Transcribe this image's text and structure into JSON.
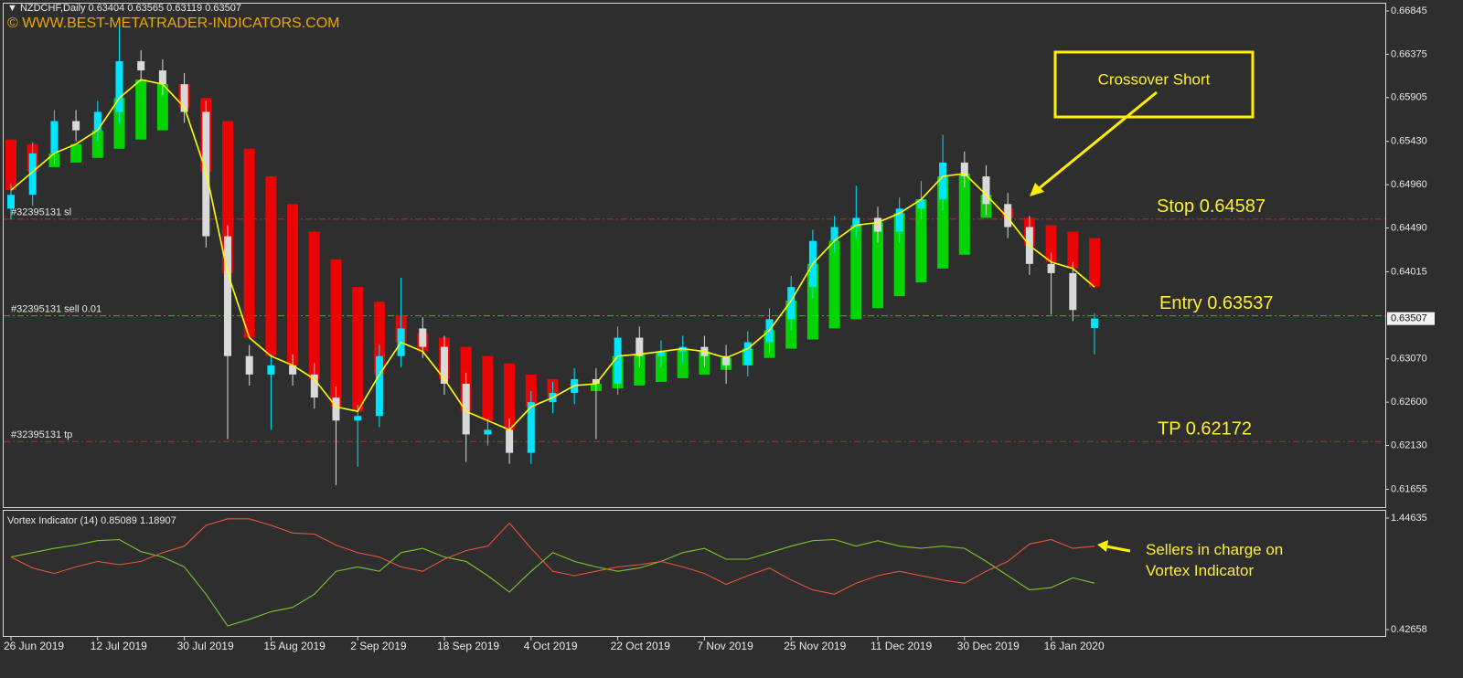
{
  "chart_data": [
    {
      "type": "candlestick",
      "symbol": "NZDCHF,Daily",
      "watermark": "© WWW.BEST-METATRADER-INDICATORS.COM",
      "annotation": "Crossover Short",
      "categories": [
        "26 Jun 2019",
        null,
        null,
        null,
        "12 Jul 2019",
        null,
        null,
        null,
        "30 Jul 2019",
        null,
        null,
        null,
        "15 Aug 2019",
        null,
        null,
        null,
        "2 Sep 2019",
        null,
        null,
        null,
        "18 Sep 2019",
        null,
        null,
        null,
        "4 Oct 2019",
        null,
        null,
        null,
        "22 Oct 2019",
        null,
        null,
        null,
        "7 Nov 2019",
        null,
        null,
        null,
        "25 Nov 2019",
        null,
        null,
        null,
        "11 Dec 2019",
        null,
        null,
        null,
        "30 Dec 2019",
        null,
        null,
        null,
        "16 Jan 2020",
        null,
        null
      ],
      "open": [
        0.647,
        0.6485,
        0.653,
        0.6565,
        0.6555,
        0.6575,
        0.663,
        0.662,
        0.6605,
        0.6575,
        0.644,
        0.631,
        0.629,
        0.63,
        0.629,
        0.6265,
        0.624,
        0.6245,
        0.631,
        0.634,
        0.632,
        0.628,
        0.6225,
        0.623,
        0.6205,
        0.626,
        0.627,
        0.6285,
        0.628,
        0.633,
        0.631,
        0.6315,
        0.632,
        0.631,
        0.63,
        0.6325,
        0.635,
        0.6385,
        0.6435,
        0.645,
        0.646,
        0.6445,
        0.647,
        0.648,
        0.652,
        0.6505,
        0.6475,
        0.645,
        0.641,
        0.64,
        0.63404
      ],
      "high": [
        0.6497,
        0.6542,
        0.6577,
        0.6577,
        0.6587,
        0.6668,
        0.6642,
        0.6632,
        0.6617,
        0.6587,
        0.6452,
        0.6322,
        0.6312,
        0.6312,
        0.6302,
        0.6277,
        0.6257,
        0.6322,
        0.6395,
        0.6352,
        0.6332,
        0.6292,
        0.6242,
        0.6242,
        0.6272,
        0.6282,
        0.6297,
        0.6297,
        0.6342,
        0.6342,
        0.6327,
        0.6332,
        0.6332,
        0.6322,
        0.6337,
        0.6362,
        0.6397,
        0.6447,
        0.6462,
        0.6495,
        0.6472,
        0.6482,
        0.65,
        0.655,
        0.6532,
        0.6517,
        0.6487,
        0.6462,
        0.6422,
        0.6412,
        0.63565
      ],
      "low": [
        0.6458,
        0.6473,
        0.6518,
        0.6543,
        0.6543,
        0.6563,
        0.6608,
        0.6593,
        0.6563,
        0.6428,
        0.622,
        0.6278,
        0.623,
        0.6278,
        0.6253,
        0.617,
        0.619,
        0.6233,
        0.6298,
        0.6308,
        0.6268,
        0.6195,
        0.6213,
        0.6193,
        0.6193,
        0.6248,
        0.6258,
        0.622,
        0.6268,
        0.6298,
        0.6298,
        0.6303,
        0.6298,
        0.628,
        0.6288,
        0.6313,
        0.6338,
        0.6373,
        0.6423,
        0.6438,
        0.6433,
        0.6433,
        0.6458,
        0.6468,
        0.6493,
        0.6463,
        0.6438,
        0.6398,
        0.6355,
        0.6348,
        0.63119
      ],
      "close": [
        0.6485,
        0.653,
        0.6565,
        0.6555,
        0.6575,
        0.663,
        0.662,
        0.6605,
        0.6575,
        0.644,
        0.631,
        0.629,
        0.63,
        0.629,
        0.6265,
        0.624,
        0.6245,
        0.631,
        0.634,
        0.632,
        0.628,
        0.6225,
        0.623,
        0.6205,
        0.626,
        0.627,
        0.6285,
        0.628,
        0.633,
        0.631,
        0.6315,
        0.632,
        0.631,
        0.63,
        0.6325,
        0.635,
        0.6385,
        0.6435,
        0.645,
        0.646,
        0.6445,
        0.647,
        0.648,
        0.652,
        0.6505,
        0.6475,
        0.645,
        0.641,
        0.64,
        0.636,
        0.63507
      ],
      "bull_color": "#00e5ff",
      "bear_color": "#d9d9d9",
      "ma": {
        "color": "#ffff00",
        "values": [
          0.649,
          0.651,
          0.653,
          0.654,
          0.6555,
          0.659,
          0.661,
          0.6605,
          0.658,
          0.651,
          0.64,
          0.633,
          0.631,
          0.63,
          0.6285,
          0.6255,
          0.625,
          0.629,
          0.6325,
          0.6315,
          0.6285,
          0.625,
          0.624,
          0.623,
          0.6255,
          0.6265,
          0.6278,
          0.628,
          0.631,
          0.6312,
          0.6315,
          0.6318,
          0.6315,
          0.6308,
          0.6318,
          0.6338,
          0.637,
          0.641,
          0.6435,
          0.6452,
          0.6455,
          0.6465,
          0.648,
          0.6505,
          0.6508,
          0.6485,
          0.646,
          0.643,
          0.6412,
          0.6405,
          0.6385
        ]
      },
      "ribbon": {
        "up_color": "#00e600",
        "down_color": "#ff0000",
        "values": [
          0.6545,
          0.654,
          0.6515,
          0.652,
          0.6525,
          0.6535,
          0.6545,
          0.6555,
          0.6605,
          0.659,
          0.6565,
          0.6535,
          0.6505,
          0.6475,
          0.6445,
          0.6415,
          0.6385,
          0.6369,
          0.6354,
          0.6335,
          0.633,
          0.632,
          0.631,
          0.6302,
          0.629,
          0.6285,
          0.628,
          0.6272,
          0.6275,
          0.6278,
          0.6282,
          0.6286,
          0.629,
          0.6295,
          0.63,
          0.6308,
          0.6318,
          0.6328,
          0.634,
          0.635,
          0.6362,
          0.6375,
          0.639,
          0.6405,
          0.642,
          0.646,
          0.647,
          0.646,
          0.6452,
          0.6445,
          0.6438
        ]
      },
      "levels": [
        {
          "name": "#32395131 sl",
          "value": 0.64587,
          "annotation": "Stop 0.64587",
          "color": "#d42020"
        },
        {
          "name": "#32395131 sell 0.01",
          "value": 0.63537,
          "annotation": "Entry 0.63537",
          "color": "#2eb82e"
        },
        {
          "name": "#32395131 tp",
          "value": 0.62172,
          "annotation": "TP 0.62172",
          "color": "#d42020"
        }
      ],
      "ylim": [
        0.61461,
        0.66964
      ],
      "yticks": [
        0.66845,
        0.66375,
        0.65905,
        {
          "value": 0.6543,
          "label": "0.65430"
        },
        {
          "value": 0.6496,
          "label": "0.64960"
        },
        {
          "value": 0.6449,
          "label": "0.64490"
        },
        0.64015,
        {
          "value": 0.6307,
          "label": "0.63070"
        },
        {
          "value": 0.626,
          "label": "0.62600"
        },
        {
          "value": 0.6213,
          "label": "0.62130"
        },
        0.61655
      ],
      "grid": false
    },
    {
      "type": "line",
      "title": "Vortex Indicator (14)",
      "annotation": "Sellers in charge on Vortex Indicator",
      "series": [
        {
          "color": "#7cc52a",
          "values": [
            1.09,
            1.13,
            1.17,
            1.2,
            1.24,
            1.25,
            1.14,
            1.09,
            1.0,
            0.75,
            0.46,
            0.52,
            0.59,
            0.63,
            0.75,
            0.96,
            1.0,
            0.96,
            1.13,
            1.17,
            1.09,
            1.05,
            0.92,
            0.77,
            0.96,
            1.13,
            1.05,
            1.0,
            0.96,
            0.99,
            1.05,
            1.13,
            1.17,
            1.07,
            1.07,
            1.13,
            1.19,
            1.24,
            1.25,
            1.19,
            1.24,
            1.19,
            1.17,
            1.19,
            1.17,
            1.05,
            0.92,
            0.79,
            0.81,
            0.9,
            0.85089
          ]
        },
        {
          "color": "#e8553a",
          "values": [
            1.09,
            0.99,
            0.94,
            1.0,
            1.05,
            1.02,
            1.05,
            1.13,
            1.19,
            1.38,
            1.44,
            1.44,
            1.38,
            1.31,
            1.3,
            1.2,
            1.13,
            1.09,
            1.0,
            0.96,
            1.07,
            1.15,
            1.19,
            1.4,
            1.17,
            0.96,
            0.92,
            0.96,
            1.0,
            1.02,
            1.05,
            1.0,
            0.94,
            0.84,
            0.92,
            0.99,
            0.88,
            0.79,
            0.75,
            0.85,
            0.92,
            0.96,
            0.92,
            0.88,
            0.85,
            0.96,
            1.05,
            1.21,
            1.25,
            1.17,
            1.18907
          ]
        }
      ],
      "ylim": [
        0.3597,
        1.5216
      ],
      "yticks": [
        1.44635,
        0.42658
      ],
      "grid": false
    }
  ]
}
